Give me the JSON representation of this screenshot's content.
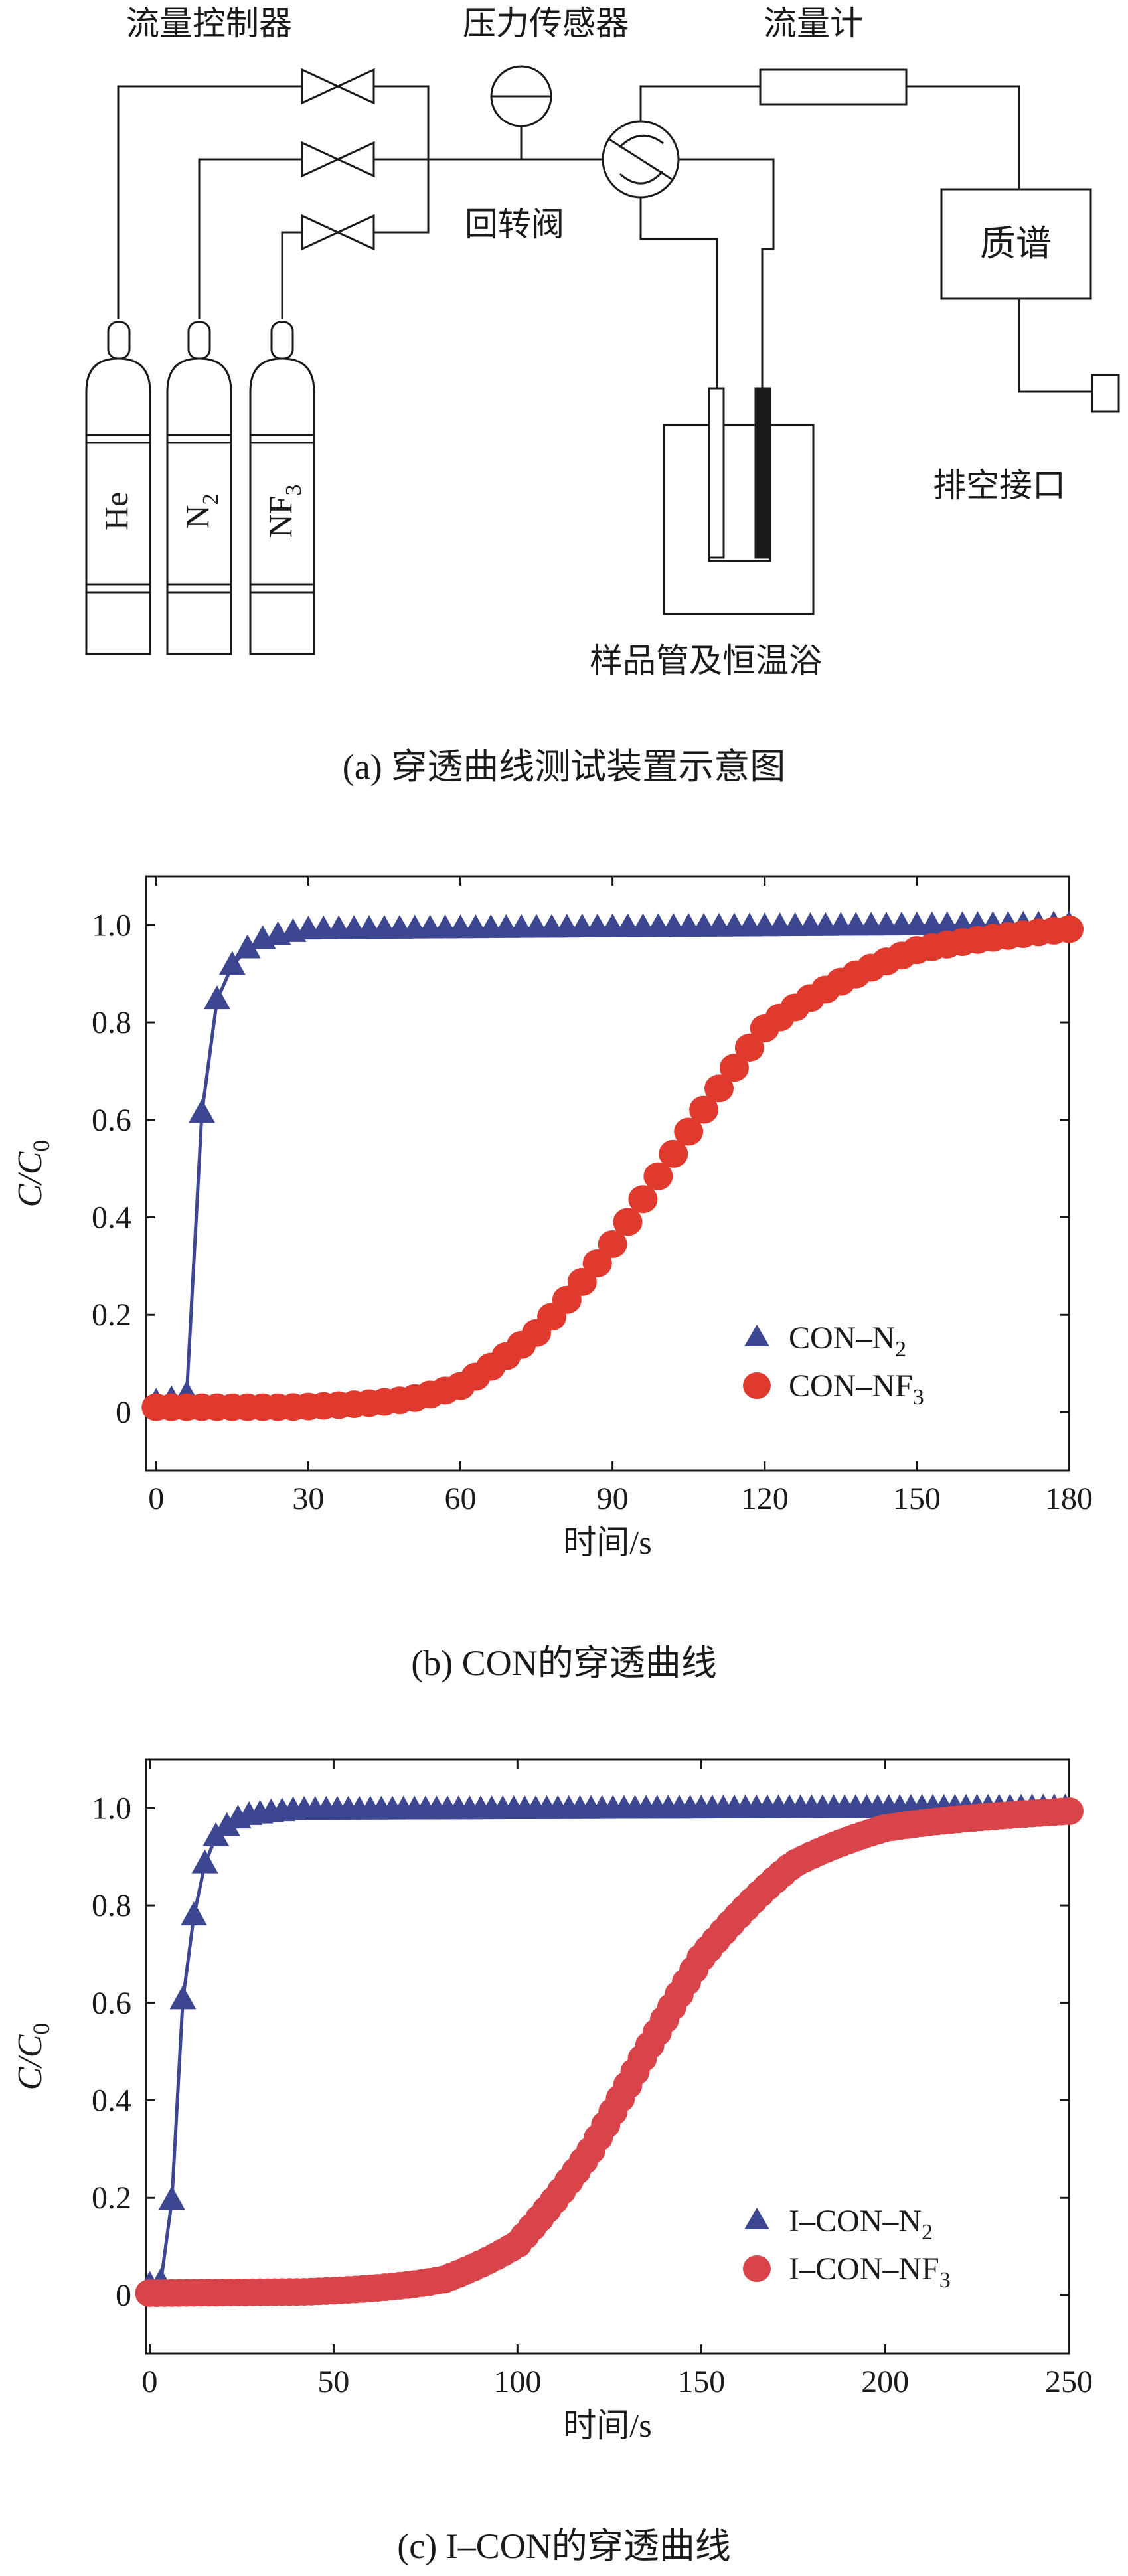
{
  "diagram": {
    "labels": {
      "flow_controller": "流量控制器",
      "pressure_sensor": "压力传感器",
      "flow_meter": "流量计",
      "rotary_valve": "回转阀",
      "mass_spec": "质谱",
      "vent": "排空接口",
      "sample_tube": "样品管及恒温浴"
    },
    "cylinders": [
      {
        "base": "He",
        "sub": ""
      },
      {
        "base": "N",
        "sub": "2"
      },
      {
        "base": "NF",
        "sub": "3"
      }
    ],
    "caption": "(a) 穿透曲线测试装置示意图"
  },
  "colors": {
    "n2": "#3d4690",
    "nf3_b": "#e03a2f",
    "nf3_c": "#d9444a",
    "axis": "#1a1a1a",
    "line": "#333333"
  },
  "chart_data": [
    {
      "id": "b",
      "type": "scatter",
      "title": "(b) CON的穿透曲线",
      "xlabel": "时间/s",
      "ylabel": {
        "main": "C/C",
        "sub": "0"
      },
      "xlim": [
        -2,
        180
      ],
      "ylim": [
        -0.12,
        1.1
      ],
      "xticks": [
        0,
        30,
        60,
        90,
        120,
        150,
        180
      ],
      "yticks": [
        0,
        0.2,
        0.4,
        0.6,
        0.8,
        1.0
      ],
      "ytick_labels": [
        "0",
        "0.2",
        "0.4",
        "0.6",
        "0.8",
        "1.0"
      ],
      "legend": "lower-right",
      "series": [
        {
          "name": "CON–N",
          "name_sub": "2",
          "marker": "triangle",
          "color": "#3d4690",
          "x_start": 0,
          "x_step": 3,
          "x_end": 180,
          "model": {
            "type": "rise",
            "t0": 6,
            "tau": 3.5
          },
          "key_points": [
            [
              4,
              0.02
            ],
            [
              7,
              0.05
            ],
            [
              9,
              0.65
            ],
            [
              11,
              0.86
            ],
            [
              15,
              0.91
            ],
            [
              20,
              0.95
            ],
            [
              30,
              0.98
            ],
            [
              180,
              1.0
            ]
          ]
        },
        {
          "name": "CON–NF",
          "name_sub": "3",
          "marker": "circle",
          "color": "#e03a2f",
          "x_start": 0,
          "x_step": 3,
          "x_end": 180,
          "model": {
            "type": "logistic",
            "t50": 100,
            "k": 0.062,
            "base": 0.002
          },
          "key_points": [
            [
              0,
              0.01
            ],
            [
              50,
              0.01
            ],
            [
              60,
              0.03
            ],
            [
              75,
              0.15
            ],
            [
              90,
              0.34
            ],
            [
              100,
              0.5
            ],
            [
              120,
              0.8
            ],
            [
              150,
              0.94
            ],
            [
              180,
              0.99
            ]
          ]
        }
      ]
    },
    {
      "id": "c",
      "type": "scatter",
      "title": "(c) I–CON的穿透曲线",
      "xlabel": "时间/s",
      "ylabel": {
        "main": "C/C",
        "sub": "0"
      },
      "xlim": [
        -1,
        250
      ],
      "ylim": [
        -0.12,
        1.1
      ],
      "xticks": [
        0,
        50,
        100,
        150,
        200,
        250
      ],
      "yticks": [
        0,
        0.2,
        0.4,
        0.6,
        0.8,
        1.0
      ],
      "ytick_labels": [
        "0",
        "0.2",
        "0.4",
        "0.6",
        "0.8",
        "1.0"
      ],
      "legend": "lower-right",
      "series": [
        {
          "name": "I–CON–N",
          "name_sub": "2",
          "marker": "triangle",
          "color": "#3d4690",
          "x_start": 0,
          "x_step": 3,
          "x_end": 249,
          "model": {
            "type": "rise",
            "t0": 5,
            "tau": 4.0
          },
          "key_points": [
            [
              0,
              0.02
            ],
            [
              5,
              0.03
            ],
            [
              9,
              0.58
            ],
            [
              14,
              0.83
            ],
            [
              18,
              0.92
            ],
            [
              25,
              0.97
            ],
            [
              40,
              0.99
            ],
            [
              249,
              1.0
            ]
          ]
        },
        {
          "name": "I–CON–NF",
          "name_sub": "3",
          "marker": "circle",
          "color": "#d9444a",
          "x_start": 0,
          "x_step": 2,
          "x_end": 250,
          "model": {
            "type": "logistic",
            "t50": 135,
            "k": 0.052,
            "base": 0.0
          },
          "key_points": [
            [
              0,
              0.0
            ],
            [
              80,
              0.01
            ],
            [
              100,
              0.07
            ],
            [
              120,
              0.28
            ],
            [
              135,
              0.5
            ],
            [
              150,
              0.7
            ],
            [
              175,
              0.88
            ],
            [
              200,
              0.95
            ],
            [
              250,
              0.99
            ]
          ]
        }
      ]
    }
  ]
}
